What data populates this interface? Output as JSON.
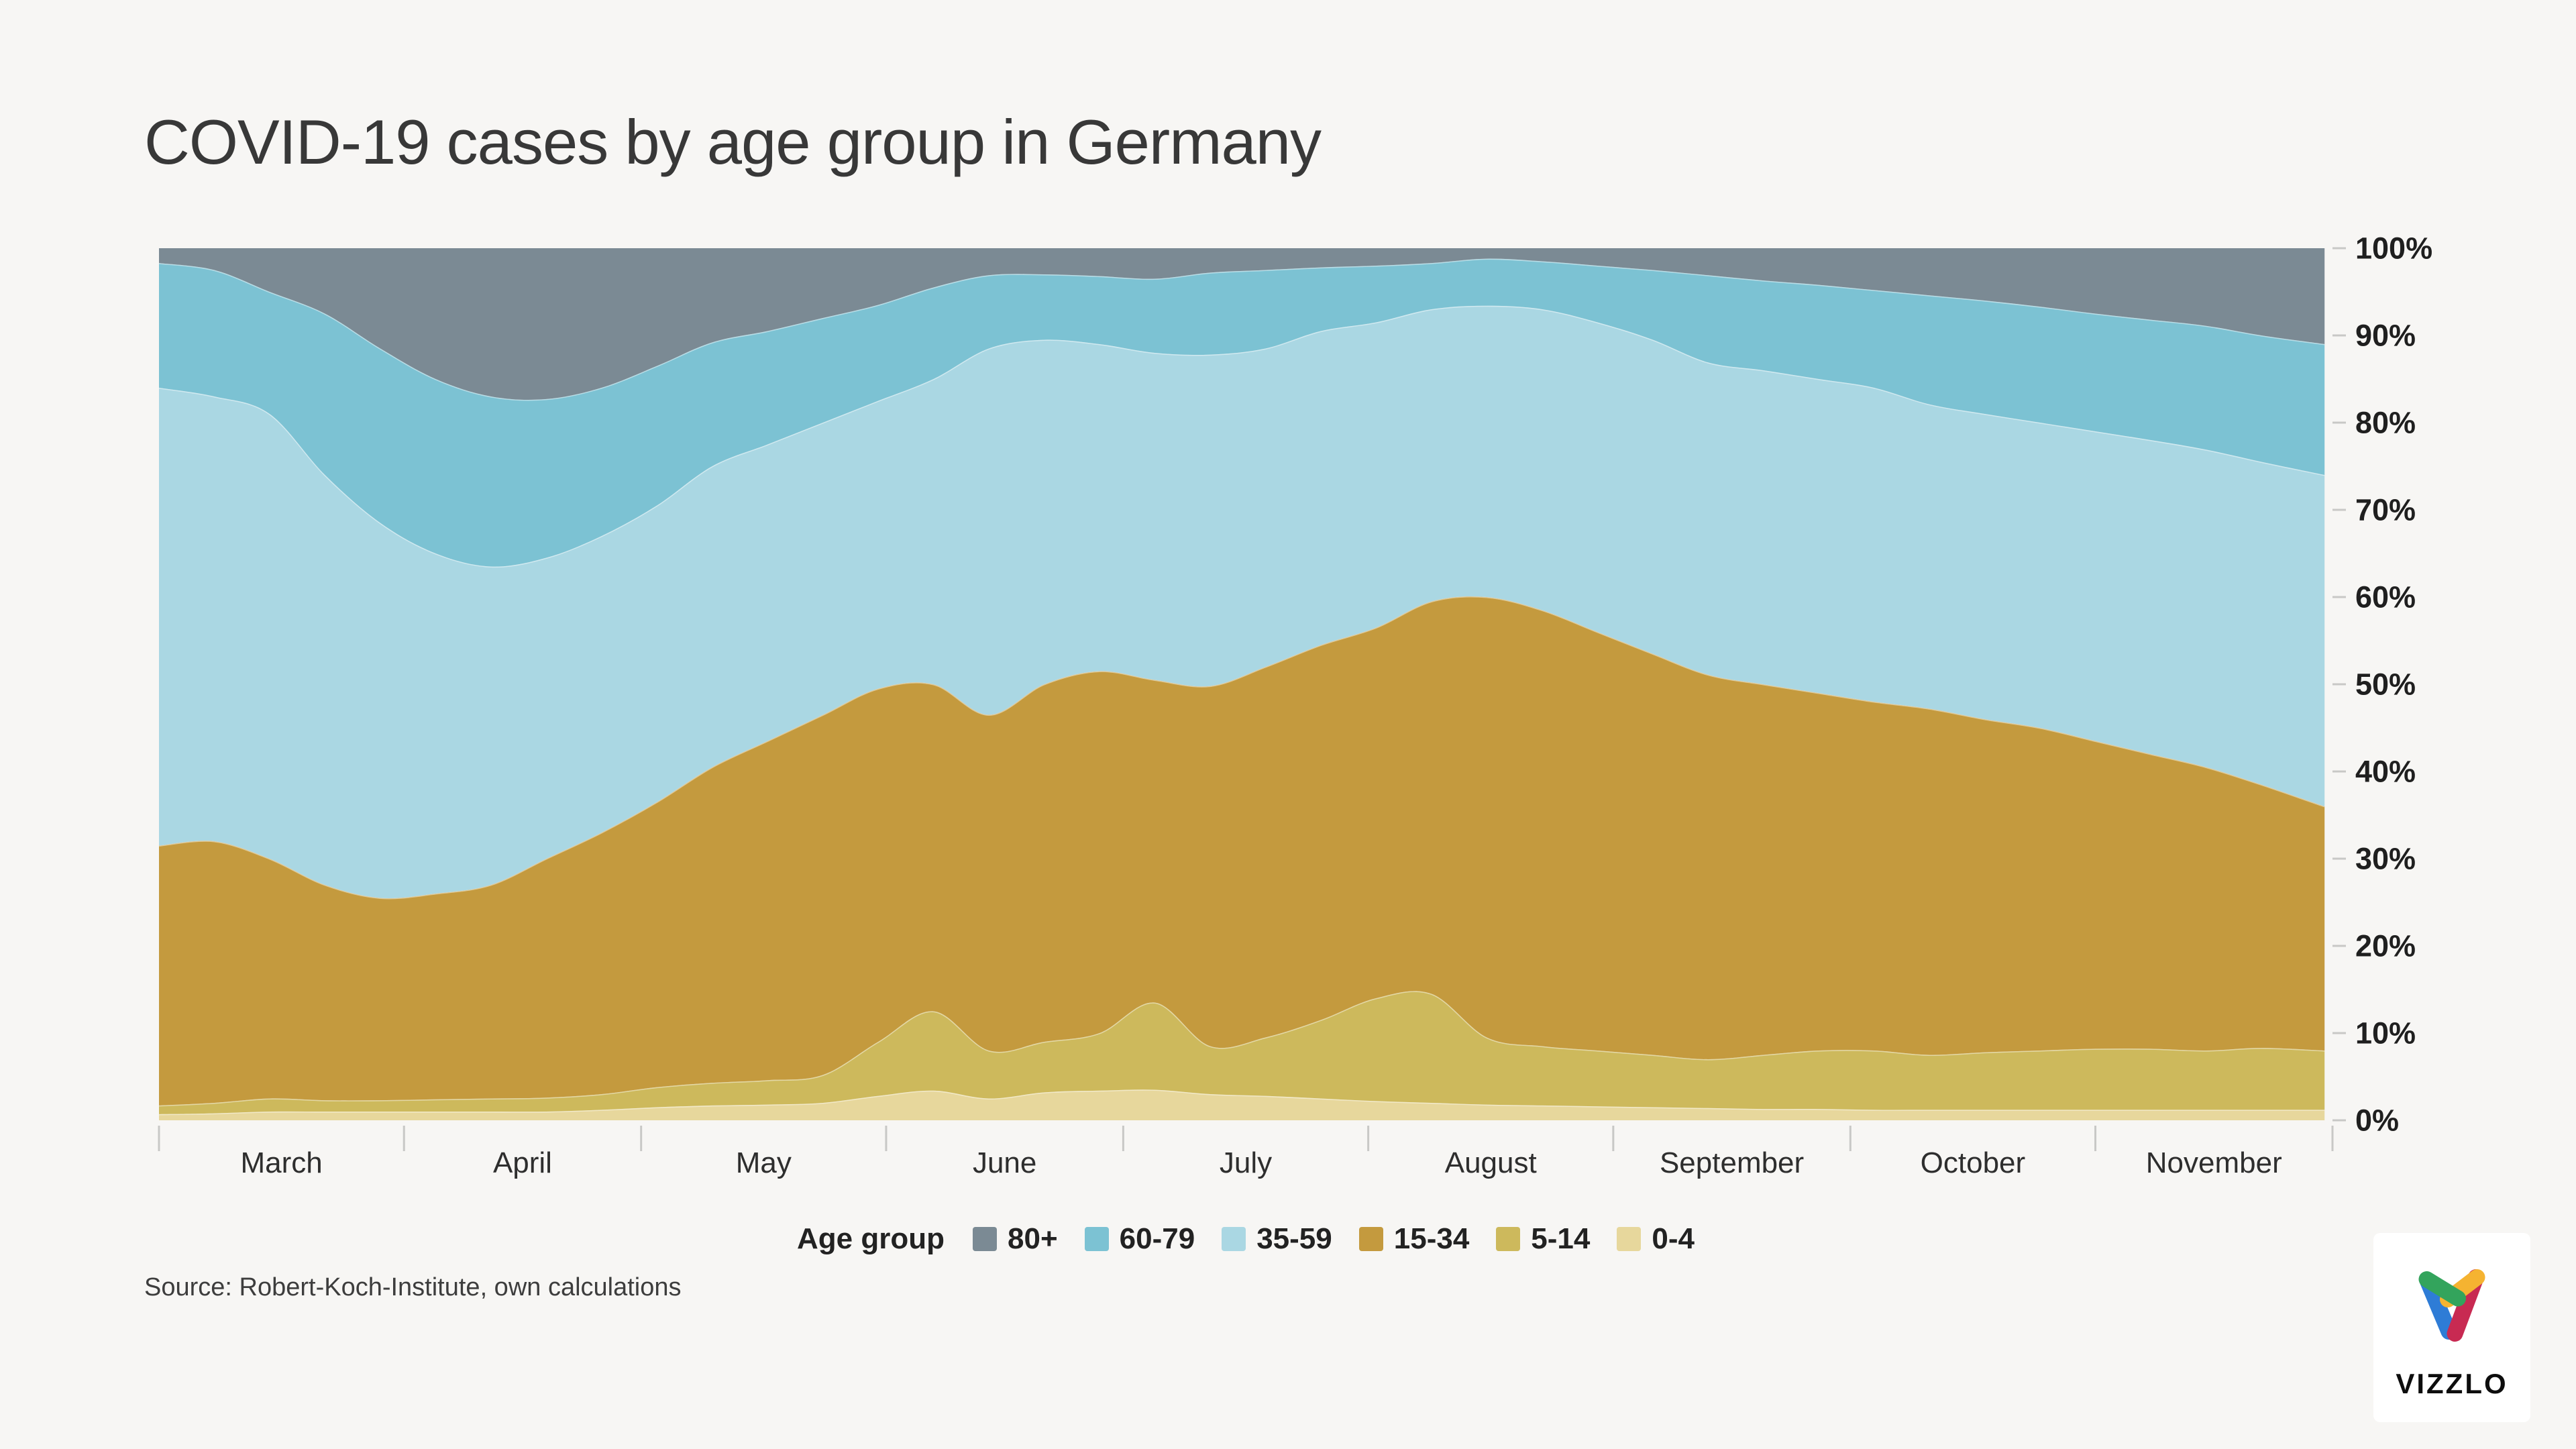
{
  "title": "COVID-19 cases by age group in Germany",
  "source": "Source: Robert-Koch-Institute, own calculations",
  "background_color": "#f7f6f4",
  "logo": {
    "text": "VIZZLO"
  },
  "legend": {
    "label": "Age group",
    "items": [
      {
        "label": "80+",
        "color": "#7b8a94"
      },
      {
        "label": "60-79",
        "color": "#7cc2d3"
      },
      {
        "label": "35-59",
        "color": "#aad7e3"
      },
      {
        "label": "15-34",
        "color": "#c49a3e"
      },
      {
        "label": "5-14",
        "color": "#cdb95c"
      },
      {
        "label": "0-4",
        "color": "#e7d79c"
      }
    ]
  },
  "chart_data": {
    "type": "area",
    "stacked_percent": true,
    "title": "COVID-19 cases by age group in Germany",
    "xlabel": "",
    "ylabel": "",
    "ylim": [
      0,
      100
    ],
    "y_axis_side": "right",
    "y_tick_labels": [
      "0%",
      "10%",
      "20%",
      "30%",
      "40%",
      "50%",
      "60%",
      "70%",
      "80%",
      "90%",
      "100%"
    ],
    "grid": false,
    "months": [
      {
        "label": "March",
        "days": 31
      },
      {
        "label": "April",
        "days": 30
      },
      {
        "label": "May",
        "days": 31
      },
      {
        "label": "June",
        "days": 30
      },
      {
        "label": "July",
        "days": 31
      },
      {
        "label": "August",
        "days": 31
      },
      {
        "label": "September",
        "days": 30
      },
      {
        "label": "October",
        "days": 31
      },
      {
        "label": "November",
        "days": 30
      }
    ],
    "total_days": 275,
    "x_days": [
      0,
      7,
      14,
      21,
      28,
      35,
      42,
      49,
      56,
      63,
      70,
      77,
      84,
      91,
      98,
      105,
      112,
      119,
      126,
      133,
      140,
      147,
      154,
      161,
      168,
      175,
      182,
      189,
      196,
      203,
      210,
      217,
      224,
      231,
      238,
      245,
      252,
      259,
      266,
      274
    ],
    "series_note": "weekly share of reported cases in percent, listed bottom-to-top of the stack",
    "series": [
      {
        "name": "0-4",
        "color": "#e7d79c",
        "values": [
          0.7,
          0.8,
          1.0,
          1.0,
          1.0,
          1.0,
          1.0,
          1.0,
          1.2,
          1.5,
          1.7,
          1.8,
          2.0,
          2.8,
          3.4,
          2.5,
          3.2,
          3.4,
          3.5,
          3.0,
          2.8,
          2.5,
          2.2,
          2.0,
          1.8,
          1.7,
          1.6,
          1.5,
          1.4,
          1.3,
          1.3,
          1.2,
          1.2,
          1.2,
          1.2,
          1.2,
          1.2,
          1.2,
          1.2,
          1.2
        ]
      },
      {
        "name": "5-14",
        "color": "#cdb95c",
        "values": [
          1.0,
          1.2,
          1.5,
          1.3,
          1.3,
          1.4,
          1.5,
          1.6,
          1.8,
          2.3,
          2.6,
          2.8,
          3.2,
          6.2,
          9.1,
          5.5,
          5.8,
          6.6,
          10.0,
          5.5,
          6.7,
          9.0,
          11.8,
          12.5,
          7.7,
          6.8,
          6.4,
          6.0,
          5.6,
          6.2,
          6.7,
          6.8,
          6.3,
          6.6,
          6.8,
          7.0,
          7.0,
          6.8,
          7.1,
          6.8
        ]
      },
      {
        "name": "15-34",
        "color": "#c49a3e",
        "values": [
          29.8,
          30.0,
          27.5,
          24.7,
          23.2,
          23.6,
          24.5,
          27.4,
          30.0,
          32.7,
          36.2,
          38.9,
          41.3,
          40.5,
          37.5,
          38.5,
          41.0,
          41.5,
          37.0,
          41.3,
          42.5,
          43.0,
          42.5,
          45.0,
          50.5,
          50.0,
          48.0,
          46.0,
          44.1,
          42.5,
          41.0,
          40.0,
          39.7,
          38.2,
          37.0,
          35.3,
          33.8,
          32.5,
          30.2,
          28.0
        ]
      },
      {
        "name": "35-59",
        "color": "#aad7e3",
        "values": [
          52.5,
          51.0,
          51.0,
          47.0,
          43.0,
          39.0,
          36.5,
          34.5,
          34.0,
          34.0,
          34.5,
          34.0,
          33.5,
          33.0,
          35.0,
          42.0,
          39.5,
          37.5,
          37.5,
          38.0,
          36.5,
          36.0,
          35.0,
          33.5,
          33.4,
          34.5,
          35.5,
          36.0,
          35.8,
          36.0,
          36.0,
          36.0,
          34.9,
          35.0,
          35.0,
          35.5,
          36.0,
          36.4,
          37.0,
          38.0
        ]
      },
      {
        "name": "60-79",
        "color": "#7cc2d3",
        "values": [
          14.3,
          14.5,
          14.0,
          18.5,
          20.0,
          20.0,
          19.5,
          18.2,
          17.0,
          16.0,
          14.2,
          13.0,
          12.0,
          11.0,
          10.5,
          8.4,
          7.5,
          7.8,
          8.5,
          9.4,
          9.0,
          7.3,
          6.5,
          5.3,
          5.4,
          5.5,
          6.5,
          8.0,
          10.0,
          10.3,
          10.8,
          11.2,
          12.5,
          13.0,
          13.3,
          13.5,
          13.8,
          14.2,
          14.5,
          15.0
        ]
      },
      {
        "name": "80+",
        "color": "#7b8a94",
        "values": [
          1.7,
          2.5,
          5.0,
          7.5,
          11.5,
          15.0,
          17.0,
          17.3,
          16.0,
          13.5,
          10.8,
          9.5,
          8.0,
          6.5,
          4.5,
          3.1,
          3.0,
          3.2,
          3.5,
          2.8,
          2.5,
          2.2,
          2.0,
          1.7,
          1.2,
          1.5,
          2.0,
          2.5,
          3.1,
          3.7,
          4.2,
          4.8,
          5.4,
          6.0,
          6.7,
          7.5,
          8.2,
          8.9,
          10.0,
          11.0
        ]
      }
    ],
    "legend_position": "bottom",
    "axis_tick_color": "#c8c8c6",
    "y_label_color": "#1f1f1f",
    "x_label_color": "#2e2e2e"
  }
}
